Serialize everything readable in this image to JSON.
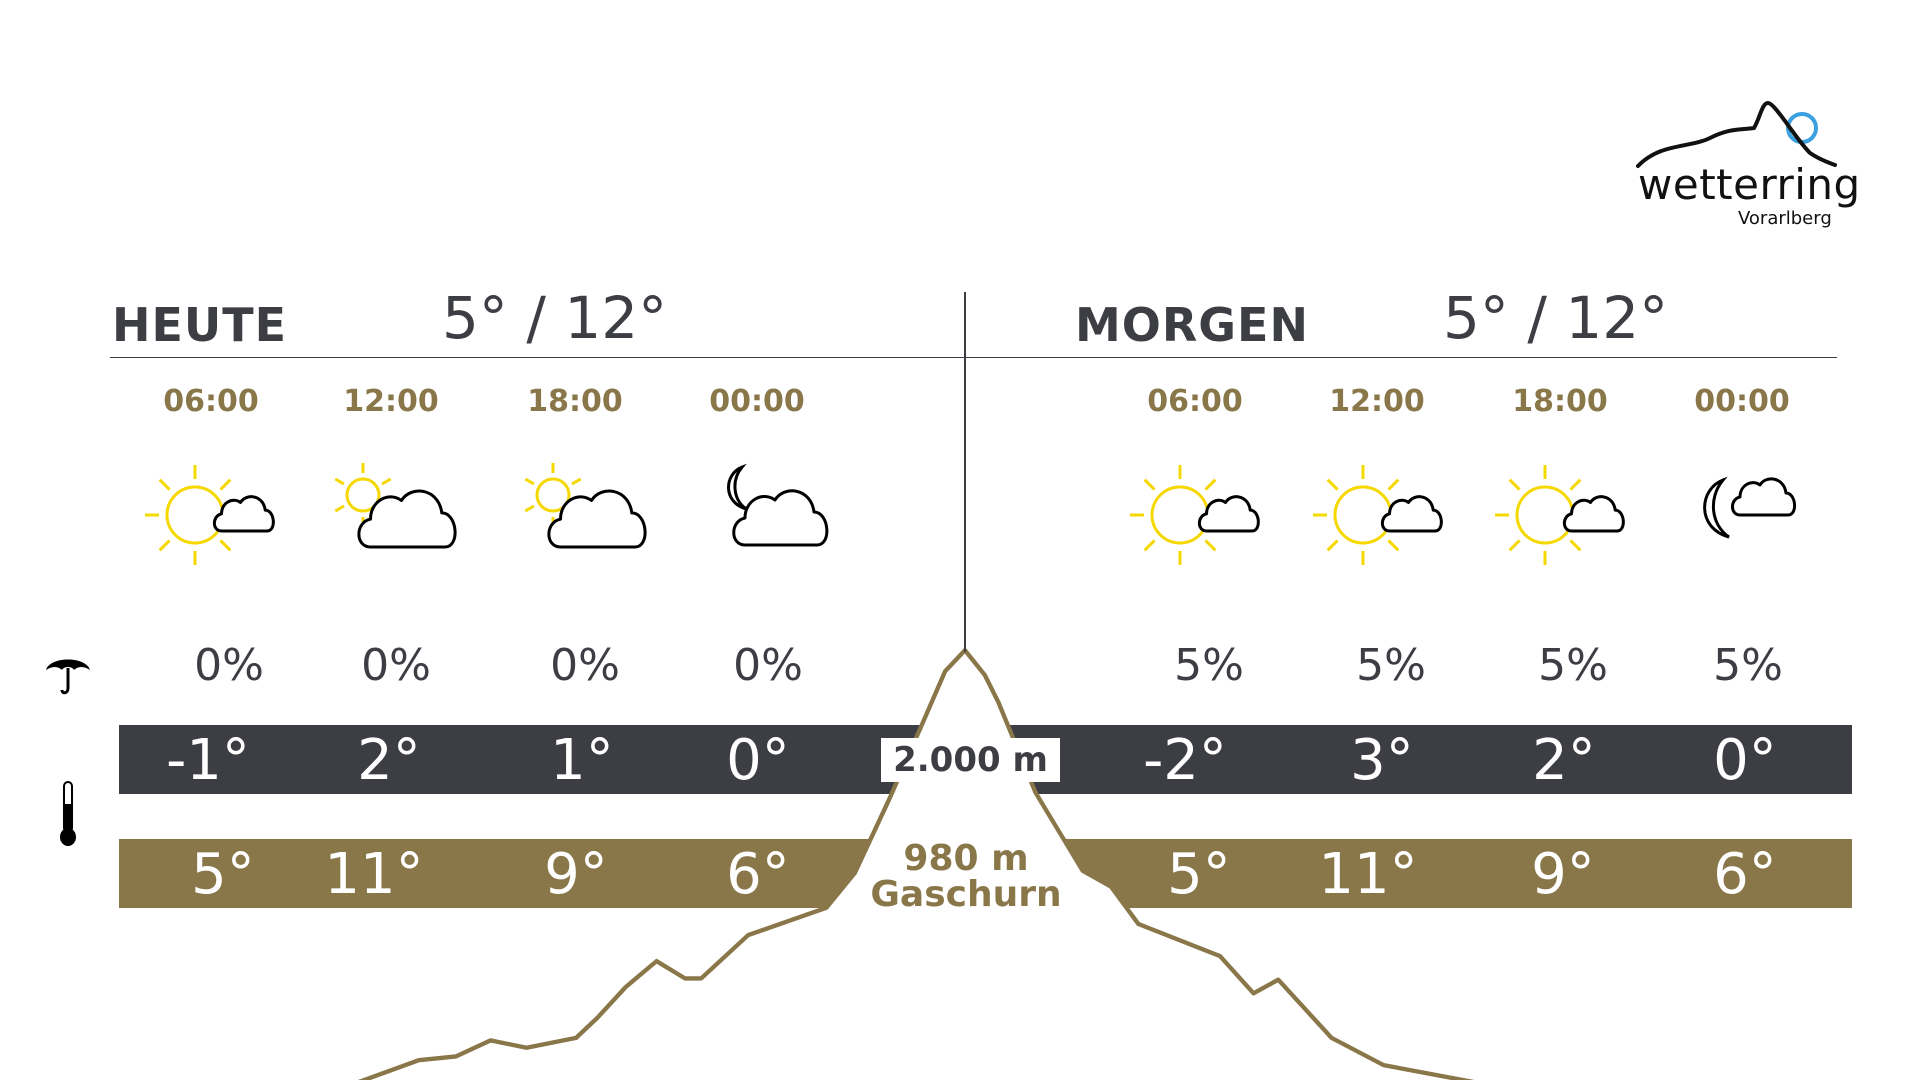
{
  "logo": {
    "name": "wetterring",
    "region": "Vorarlberg",
    "accent": "#3aa0e0"
  },
  "colors": {
    "dark": "#3d3e44",
    "gold": "#8a7749",
    "sun": "#f5d800"
  },
  "today": {
    "title": "HEUTE",
    "range": "5° / 12°",
    "slots": [
      {
        "time": "06:00",
        "icon": "sun-cloud",
        "precip": "0%",
        "mountain_temp": "-1°",
        "valley_temp": "5°"
      },
      {
        "time": "12:00",
        "icon": "small-sun-cloud",
        "precip": "0%",
        "mountain_temp": "2°",
        "valley_temp": "11°"
      },
      {
        "time": "18:00",
        "icon": "small-sun-cloud",
        "precip": "0%",
        "mountain_temp": "1°",
        "valley_temp": "9°"
      },
      {
        "time": "00:00",
        "icon": "moon-cloud",
        "precip": "0%",
        "mountain_temp": "0°",
        "valley_temp": "6°"
      }
    ]
  },
  "tomorrow": {
    "title": "MORGEN",
    "range": "5° / 12°",
    "slots": [
      {
        "time": "06:00",
        "icon": "sun-cloud",
        "precip": "5%",
        "mountain_temp": "-2°",
        "valley_temp": "5°"
      },
      {
        "time": "12:00",
        "icon": "sun-cloud",
        "precip": "5%",
        "mountain_temp": "3°",
        "valley_temp": "11°"
      },
      {
        "time": "18:00",
        "icon": "sun-cloud",
        "precip": "5%",
        "mountain_temp": "2°",
        "valley_temp": "9°"
      },
      {
        "time": "00:00",
        "icon": "moon-small-cloud",
        "precip": "5%",
        "mountain_temp": "0°",
        "valley_temp": "6°"
      }
    ]
  },
  "mountain": {
    "altitude": "2.000 m",
    "valley_altitude": "980 m",
    "valley_name": "Gaschurn"
  },
  "legend": {
    "precip_icon": "umbrella-icon",
    "temp_icon": "thermometer-icon"
  }
}
